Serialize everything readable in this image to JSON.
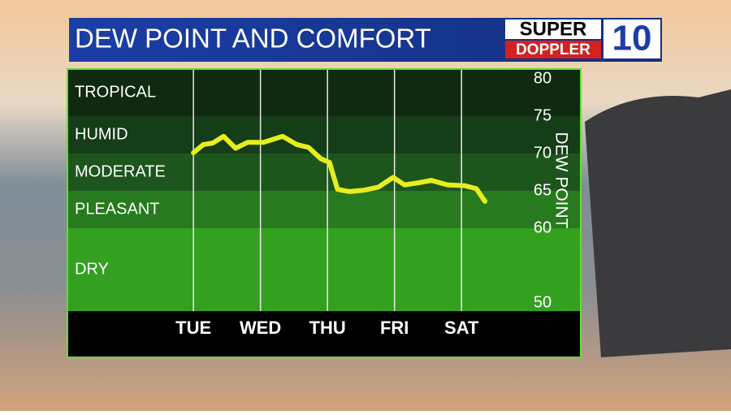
{
  "chart_data": {
    "type": "line",
    "title": "DEW POINT AND COMFORT",
    "y_label": "DEW POINT",
    "x": [
      0,
      0.15,
      0.29,
      0.45,
      0.63,
      0.81,
      1.05,
      1.33,
      1.54,
      1.72,
      1.9,
      2.03,
      2.15,
      2.33,
      2.55,
      2.76,
      2.98,
      3.15,
      3.37,
      3.55,
      3.79,
      4.04,
      4.22,
      4.35
    ],
    "values": [
      70.1,
      71.2,
      71.4,
      72.3,
      70.7,
      71.5,
      71.5,
      72.3,
      71.2,
      70.8,
      69.3,
      68.8,
      65.2,
      64.9,
      65.1,
      65.5,
      66.8,
      65.8,
      66.1,
      66.4,
      65.8,
      65.7,
      65.3,
      63.6
    ],
    "color": "#e6ee1e",
    "xlim": [
      -1.88,
      4.87
    ],
    "xticks": [
      {
        "value": 0,
        "label": "TUE"
      },
      {
        "value": 1,
        "label": "WED"
      },
      {
        "value": 2,
        "label": "THU"
      },
      {
        "value": 3,
        "label": "FRI"
      },
      {
        "value": 4,
        "label": "SAT"
      }
    ],
    "ylim": [
      50,
      80
    ],
    "yticks": [
      50,
      60,
      65,
      70,
      75,
      80
    ],
    "zones": [
      {
        "label": "TROPICAL",
        "from": 75,
        "to": 81.3,
        "color": "#0f2a10"
      },
      {
        "label": "HUMID",
        "from": 70,
        "to": 75,
        "color": "#153d17"
      },
      {
        "label": "MODERATE",
        "from": 65,
        "to": 70,
        "color": "#1d561c"
      },
      {
        "label": "PLEASANT",
        "from": 60,
        "to": 65,
        "color": "#277a1e"
      },
      {
        "label": "DRY",
        "from": 48.9,
        "to": 60,
        "color": "#33a020"
      }
    ]
  },
  "logo": {
    "line1": "SUPER",
    "line2": "DOPPLER",
    "number": "10"
  }
}
